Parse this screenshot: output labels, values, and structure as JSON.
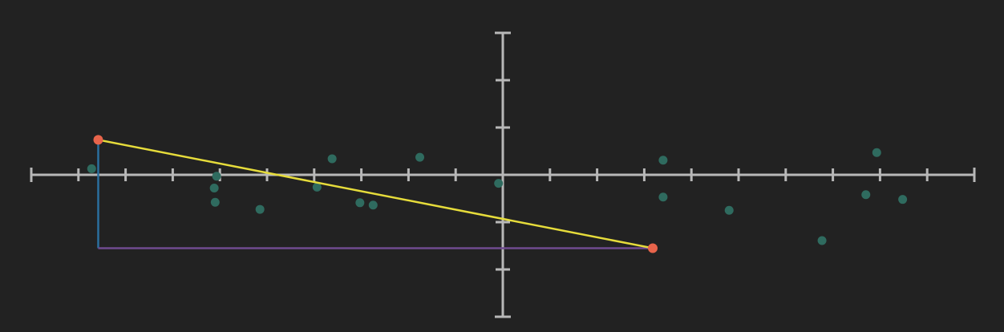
{
  "colors": {
    "background": "#222222",
    "axis": "#b8b8b8",
    "scatter": "#2f6b5f",
    "fit_line": "#e6dc3b",
    "vertical_leg": "#2b6f9e",
    "horizontal_leg": "#6f4b8f",
    "endpoint": "#e8644b"
  },
  "chart_data": {
    "type": "scatter",
    "xlim": [
      -10,
      10
    ],
    "ylim": [
      -3,
      3
    ],
    "x_ticks": [
      -10,
      -9,
      -8,
      -7,
      -6,
      -5,
      -4,
      -3,
      -2,
      -1,
      0,
      1,
      2,
      3,
      4,
      5,
      6,
      7,
      8,
      9,
      10
    ],
    "y_ticks": [
      -3,
      -2,
      -1,
      0,
      1,
      2,
      3
    ],
    "grid": false,
    "tick_labels": false,
    "scatter_points": [
      {
        "x": -8.72,
        "y": 0.13
      },
      {
        "x": -6.07,
        "y": -0.03
      },
      {
        "x": -6.12,
        "y": -0.28
      },
      {
        "x": -6.1,
        "y": -0.58
      },
      {
        "x": -5.15,
        "y": -0.73
      },
      {
        "x": -3.62,
        "y": 0.34
      },
      {
        "x": -3.94,
        "y": -0.26
      },
      {
        "x": -3.03,
        "y": -0.59
      },
      {
        "x": -2.75,
        "y": -0.64
      },
      {
        "x": -1.76,
        "y": 0.37
      },
      {
        "x": -0.09,
        "y": -0.18
      },
      {
        "x": 3.4,
        "y": 0.31
      },
      {
        "x": 3.4,
        "y": -0.47
      },
      {
        "x": 4.8,
        "y": -0.75
      },
      {
        "x": 6.77,
        "y": -1.39
      },
      {
        "x": 7.93,
        "y": 0.47
      },
      {
        "x": 7.7,
        "y": -0.42
      },
      {
        "x": 8.48,
        "y": -0.52
      }
    ],
    "fit_line": {
      "start": {
        "x": -8.58,
        "y": 0.74
      },
      "end": {
        "x": 3.18,
        "y": -1.55
      }
    },
    "legs": {
      "vertical": {
        "x": -8.58,
        "y_from": 0.74,
        "y_to": -1.55
      },
      "horizontal": {
        "y": -1.55,
        "x_from": -8.58,
        "x_to": 3.18
      }
    },
    "endpoints": [
      {
        "x": -8.58,
        "y": 0.74
      },
      {
        "x": 3.18,
        "y": -1.55
      }
    ]
  }
}
